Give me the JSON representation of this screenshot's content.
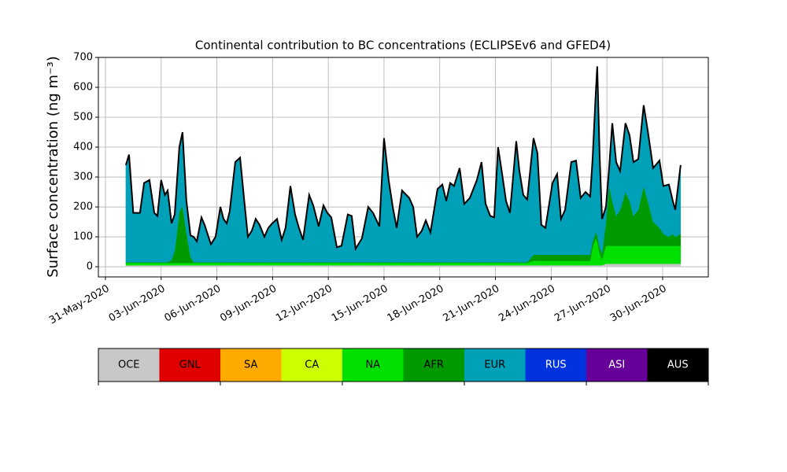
{
  "chart_data": {
    "type": "stacked-area",
    "title": "Continental contribution to BC concentrations (ECLIPSEv6 and GFED4)",
    "y_label": "Surface concentration (ng m⁻³)",
    "x": [
      1.1,
      1.27,
      1.5,
      1.86,
      2.08,
      2.37,
      2.63,
      2.8,
      3.0,
      3.2,
      3.35,
      3.56,
      3.73,
      3.98,
      4.15,
      4.36,
      4.58,
      4.75,
      4.92,
      5.17,
      5.34,
      5.68,
      5.93,
      6.19,
      6.36,
      6.53,
      6.69,
      6.99,
      7.25,
      7.46,
      7.67,
      7.88,
      8.09,
      8.3,
      8.56,
      8.77,
      8.98,
      9.24,
      9.49,
      9.7,
      9.96,
      10.21,
      10.42,
      10.64,
      10.97,
      11.19,
      11.48,
      11.74,
      11.95,
      12.16,
      12.46,
      12.71,
      13.05,
      13.26,
      13.47,
      13.81,
      14.15,
      14.41,
      14.75,
      15.0,
      15.25,
      15.47,
      15.68,
      15.97,
      16.36,
      16.57,
      16.78,
      17.03,
      17.25,
      17.5,
      17.88,
      18.14,
      18.35,
      18.56,
      18.77,
      19.07,
      19.32,
      19.62,
      20.0,
      20.25,
      20.47,
      20.72,
      20.93,
      21.14,
      21.36,
      21.57,
      21.78,
      22.12,
      22.29,
      22.5,
      22.71,
      23.05,
      23.26,
      23.47,
      23.69,
      24.07,
      24.32,
      24.53,
      24.75,
      25.08,
      25.34,
      25.59,
      25.85,
      26.1,
      26.23,
      26.4,
      26.48,
      26.61,
      26.74,
      26.95,
      27.12,
      27.29,
      27.5,
      27.71,
      28.0,
      28.22,
      28.43,
      28.69,
      28.98,
      29.2,
      29.49,
      29.83,
      30.04,
      30.34,
      30.55,
      30.68,
      30.97
    ],
    "series": [
      {
        "name": "OCE",
        "color": "#c8c8c8",
        "values": [
          5,
          5,
          5,
          5,
          5,
          5,
          5,
          5,
          5,
          5,
          5,
          5,
          5,
          5,
          5,
          5,
          5,
          5,
          5,
          5,
          5,
          5,
          5,
          5,
          5,
          5,
          5,
          5,
          5,
          5,
          5,
          5,
          5,
          5,
          5,
          5,
          5,
          5,
          5,
          5,
          5,
          5,
          5,
          5,
          5,
          5,
          5,
          5,
          5,
          5,
          5,
          5,
          5,
          5,
          5,
          5,
          5,
          5,
          5,
          5,
          5,
          5,
          5,
          5,
          5,
          5,
          5,
          5,
          5,
          5,
          5,
          5,
          5,
          5,
          5,
          5,
          5,
          5,
          5,
          5,
          5,
          5,
          5,
          5,
          5,
          5,
          5,
          5,
          5,
          5,
          5,
          5,
          5,
          5,
          5,
          5,
          5,
          5,
          5,
          5,
          5,
          5,
          5,
          5,
          5,
          5,
          5,
          5,
          5,
          10,
          10,
          10,
          10,
          10,
          10,
          10,
          10,
          10,
          10,
          10,
          10,
          10,
          10,
          10,
          10,
          10,
          10
        ]
      },
      {
        "name": "NA",
        "color": "#00e000",
        "values": [
          8,
          8,
          8,
          8,
          8,
          8,
          8,
          8,
          8,
          8,
          8,
          8,
          8,
          8,
          8,
          8,
          8,
          8,
          8,
          8,
          8,
          8,
          8,
          8,
          8,
          8,
          8,
          8,
          8,
          8,
          8,
          8,
          8,
          8,
          8,
          8,
          8,
          8,
          8,
          8,
          8,
          8,
          8,
          8,
          8,
          8,
          8,
          8,
          8,
          8,
          8,
          8,
          8,
          8,
          8,
          8,
          8,
          8,
          8,
          8,
          8,
          8,
          8,
          8,
          8,
          8,
          8,
          8,
          8,
          8,
          8,
          8,
          8,
          8,
          8,
          8,
          8,
          8,
          8,
          8,
          8,
          8,
          8,
          8,
          8,
          8,
          8,
          8,
          8,
          8,
          8,
          15,
          15,
          15,
          15,
          15,
          15,
          15,
          15,
          15,
          15,
          15,
          15,
          15,
          60,
          90,
          80,
          40,
          20,
          60,
          60,
          60,
          60,
          60,
          60,
          60,
          60,
          60,
          60,
          60,
          60,
          60,
          60,
          60,
          60,
          60,
          60
        ]
      },
      {
        "name": "AFR",
        "color": "#009900",
        "values": [
          2,
          2,
          2,
          2,
          2,
          2,
          2,
          2,
          2,
          2,
          2,
          10,
          40,
          170,
          190,
          100,
          20,
          2,
          2,
          2,
          2,
          2,
          2,
          2,
          2,
          2,
          2,
          2,
          2,
          2,
          2,
          2,
          2,
          2,
          2,
          2,
          2,
          2,
          2,
          2,
          2,
          2,
          2,
          2,
          2,
          2,
          2,
          2,
          2,
          2,
          2,
          2,
          2,
          2,
          2,
          2,
          2,
          2,
          2,
          2,
          2,
          2,
          2,
          2,
          2,
          2,
          2,
          2,
          2,
          2,
          2,
          2,
          2,
          2,
          2,
          2,
          2,
          2,
          2,
          2,
          2,
          2,
          2,
          2,
          2,
          2,
          2,
          2,
          2,
          2,
          2,
          20,
          20,
          20,
          20,
          20,
          20,
          20,
          20,
          20,
          20,
          20,
          20,
          20,
          20,
          20,
          20,
          20,
          20,
          80,
          200,
          150,
          100,
          120,
          180,
          150,
          100,
          120,
          200,
          150,
          80,
          60,
          40,
          30,
          40,
          30,
          40
        ]
      },
      {
        "name": "EUR",
        "color": "#00a0b8",
        "values": [
          325,
          360,
          165,
          165,
          265,
          275,
          165,
          155,
          275,
          225,
          240,
          122,
          122,
          217,
          247,
          107,
          72,
          85,
          70,
          150,
          125,
          60,
          85,
          185,
          145,
          130,
          170,
          335,
          350,
          215,
          85,
          105,
          145,
          125,
          85,
          115,
          130,
          145,
          75,
          115,
          255,
          160,
          115,
          75,
          225,
          190,
          120,
          190,
          165,
          150,
          50,
          55,
          160,
          155,
          45,
          80,
          185,
          165,
          120,
          415,
          275,
          185,
          115,
          240,
          215,
          185,
          85,
          105,
          140,
          100,
          245,
          260,
          205,
          265,
          255,
          315,
          195,
          215,
          275,
          335,
          195,
          155,
          150,
          385,
          295,
          205,
          165,
          405,
          305,
          225,
          210,
          390,
          340,
          100,
          90,
          240,
          270,
          120,
          150,
          310,
          315,
          190,
          210,
          195,
          275,
          465,
          565,
          305,
          115,
          50,
          60,
          260,
          180,
          130,
          230,
          220,
          180,
          170,
          270,
          235,
          180,
          225,
          160,
          175,
          110,
          90,
          230
        ]
      }
    ],
    "outline_color": "#000000",
    "xlim": [
      -0.38,
      32.46
    ],
    "xticks": [
      {
        "value": 0,
        "label": "31-May-2020"
      },
      {
        "value": 3,
        "label": "03-Jun-2020"
      },
      {
        "value": 6,
        "label": "06-Jun-2020"
      },
      {
        "value": 9,
        "label": "09-Jun-2020"
      },
      {
        "value": 12,
        "label": "12-Jun-2020"
      },
      {
        "value": 15,
        "label": "15-Jun-2020"
      },
      {
        "value": 18,
        "label": "18-Jun-2020"
      },
      {
        "value": 21,
        "label": "21-Jun-2020"
      },
      {
        "value": 24,
        "label": "24-Jun-2020"
      },
      {
        "value": 27,
        "label": "27-Jun-2020"
      },
      {
        "value": 30,
        "label": "30-Jun-2020"
      }
    ],
    "ylim": [
      -34,
      700
    ],
    "yticks": [
      0,
      100,
      200,
      300,
      400,
      500,
      600,
      700
    ],
    "grid": true,
    "colorbar": {
      "labels": [
        "OCE",
        "GNL",
        "SA",
        "CA",
        "NA",
        "AFR",
        "EUR",
        "RUS",
        "ASI",
        "AUS"
      ],
      "colors": [
        "#c8c8c8",
        "#e00000",
        "#ffaa00",
        "#ccff00",
        "#00e000",
        "#009900",
        "#00a0b8",
        "#0033dd",
        "#660099",
        "#000000"
      ]
    }
  }
}
